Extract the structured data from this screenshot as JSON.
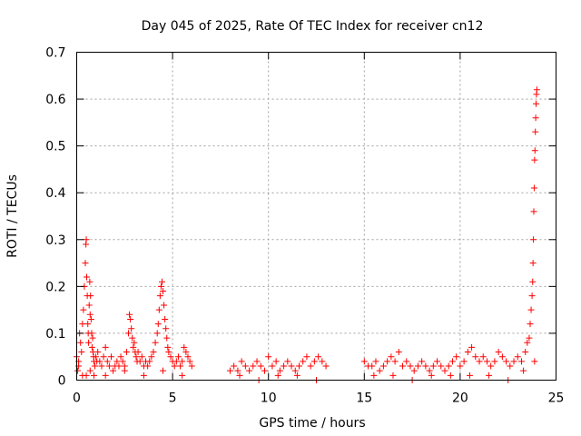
{
  "chart_data": {
    "type": "scatter",
    "title": "Day 045 of 2025, Rate Of TEC Index for receiver cn12",
    "xlabel": "GPS time / hours",
    "ylabel": "ROTI / TECUs",
    "xlim": [
      0,
      25
    ],
    "ylim": [
      0,
      0.7
    ],
    "xticks": [
      "0",
      "5",
      "10",
      "15",
      "20",
      "25"
    ],
    "yticks": [
      "0",
      "0.1",
      "0.2",
      "0.3",
      "0.4",
      "0.5",
      "0.6",
      "0.7"
    ],
    "grid": true,
    "marker": "+",
    "color": "#ff0000",
    "series": [
      {
        "x": [
          0.0,
          0.05,
          0.1,
          0.15,
          0.2,
          0.25,
          0.3,
          0.35,
          0.4,
          0.45,
          0.48,
          0.5,
          0.52,
          0.55,
          0.58,
          0.6,
          0.62,
          0.65,
          0.68,
          0.7,
          0.72,
          0.75,
          0.78,
          0.8,
          0.83,
          0.85,
          0.88,
          0.9,
          0.95,
          1.0,
          1.05,
          1.1,
          1.2,
          1.3,
          1.4,
          1.5,
          1.6,
          1.7,
          1.8,
          1.9,
          2.0,
          2.1,
          2.2,
          2.3,
          2.4,
          2.5,
          2.6,
          2.7,
          2.75,
          2.8,
          2.85,
          2.9,
          2.95,
          3.0,
          3.05,
          3.1,
          3.15,
          3.2,
          3.3,
          3.4,
          3.5,
          3.6,
          3.7,
          3.8,
          3.9,
          4.0,
          4.1,
          4.2,
          4.25,
          4.3,
          4.35,
          4.4,
          4.45,
          4.5,
          4.55,
          4.6,
          4.65,
          4.7,
          4.75,
          4.8,
          4.9,
          5.0,
          5.1,
          5.2,
          5.3,
          5.4,
          5.5,
          5.6,
          5.7,
          5.8,
          5.9,
          6.0,
          8.0,
          8.2,
          8.4,
          8.6,
          8.8,
          9.0,
          9.2,
          9.4,
          9.6,
          9.8,
          10.0,
          10.2,
          10.4,
          10.6,
          10.8,
          11.0,
          11.2,
          11.4,
          11.6,
          11.8,
          12.0,
          12.2,
          12.4,
          12.6,
          12.8,
          13.0,
          15.0,
          15.2,
          15.4,
          15.6,
          15.8,
          16.0,
          16.2,
          16.4,
          16.6,
          16.8,
          17.0,
          17.2,
          17.4,
          17.6,
          17.8,
          18.0,
          18.2,
          18.4,
          18.6,
          18.8,
          19.0,
          19.2,
          19.4,
          19.6,
          19.8,
          20.0,
          20.2,
          20.4,
          20.6,
          20.8,
          21.0,
          21.2,
          21.4,
          21.6,
          21.8,
          22.0,
          22.2,
          22.4,
          22.6,
          22.8,
          23.0,
          23.2,
          23.4,
          23.5,
          23.6,
          23.65,
          23.7,
          23.75,
          23.78,
          23.8,
          23.82,
          23.84,
          23.86,
          23.88,
          23.9,
          23.92,
          23.94,
          23.96,
          23.98,
          24.0,
          0.1,
          0.3,
          0.5,
          0.7,
          0.9,
          1.5,
          2.5,
          3.5,
          4.5,
          5.5,
          8.5,
          9.5,
          10.5,
          11.5,
          12.5,
          15.5,
          16.5,
          17.5,
          18.5,
          19.5,
          20.5,
          21.5,
          22.5,
          23.3,
          23.88
        ],
        "y": [
          0.05,
          0.02,
          0.04,
          0.1,
          0.08,
          0.06,
          0.12,
          0.15,
          0.2,
          0.25,
          0.29,
          0.3,
          0.22,
          0.18,
          0.12,
          0.1,
          0.08,
          0.16,
          0.21,
          0.14,
          0.18,
          0.13,
          0.1,
          0.07,
          0.09,
          0.06,
          0.05,
          0.04,
          0.03,
          0.05,
          0.04,
          0.06,
          0.04,
          0.03,
          0.05,
          0.07,
          0.04,
          0.03,
          0.05,
          0.02,
          0.03,
          0.04,
          0.03,
          0.05,
          0.04,
          0.03,
          0.06,
          0.1,
          0.14,
          0.13,
          0.11,
          0.09,
          0.07,
          0.08,
          0.06,
          0.05,
          0.04,
          0.06,
          0.04,
          0.05,
          0.03,
          0.04,
          0.03,
          0.04,
          0.05,
          0.06,
          0.08,
          0.1,
          0.12,
          0.15,
          0.18,
          0.2,
          0.21,
          0.19,
          0.16,
          0.13,
          0.11,
          0.09,
          0.07,
          0.06,
          0.05,
          0.04,
          0.03,
          0.04,
          0.05,
          0.03,
          0.04,
          0.07,
          0.06,
          0.05,
          0.04,
          0.03,
          0.02,
          0.03,
          0.02,
          0.04,
          0.03,
          0.02,
          0.03,
          0.04,
          0.03,
          0.02,
          0.05,
          0.03,
          0.04,
          0.02,
          0.03,
          0.04,
          0.03,
          0.02,
          0.03,
          0.04,
          0.05,
          0.03,
          0.04,
          0.05,
          0.04,
          0.03,
          0.04,
          0.03,
          0.03,
          0.04,
          0.02,
          0.03,
          0.04,
          0.05,
          0.04,
          0.06,
          0.03,
          0.04,
          0.03,
          0.02,
          0.03,
          0.04,
          0.03,
          0.02,
          0.03,
          0.04,
          0.03,
          0.02,
          0.03,
          0.04,
          0.05,
          0.03,
          0.04,
          0.06,
          0.07,
          0.05,
          0.04,
          0.05,
          0.04,
          0.03,
          0.04,
          0.06,
          0.05,
          0.04,
          0.03,
          0.04,
          0.05,
          0.04,
          0.06,
          0.08,
          0.09,
          0.12,
          0.15,
          0.18,
          0.21,
          0.25,
          0.3,
          0.36,
          0.41,
          0.47,
          0.49,
          0.53,
          0.56,
          0.59,
          0.61,
          0.62,
          0.03,
          0.01,
          0.01,
          0.02,
          0.01,
          0.01,
          0.02,
          0.01,
          0.02,
          0.01,
          0.01,
          0.0,
          0.01,
          0.01,
          0.0,
          0.01,
          0.01,
          0.0,
          0.01,
          0.01,
          0.01,
          0.01,
          0.0,
          0.02,
          0.04
        ]
      }
    ]
  }
}
